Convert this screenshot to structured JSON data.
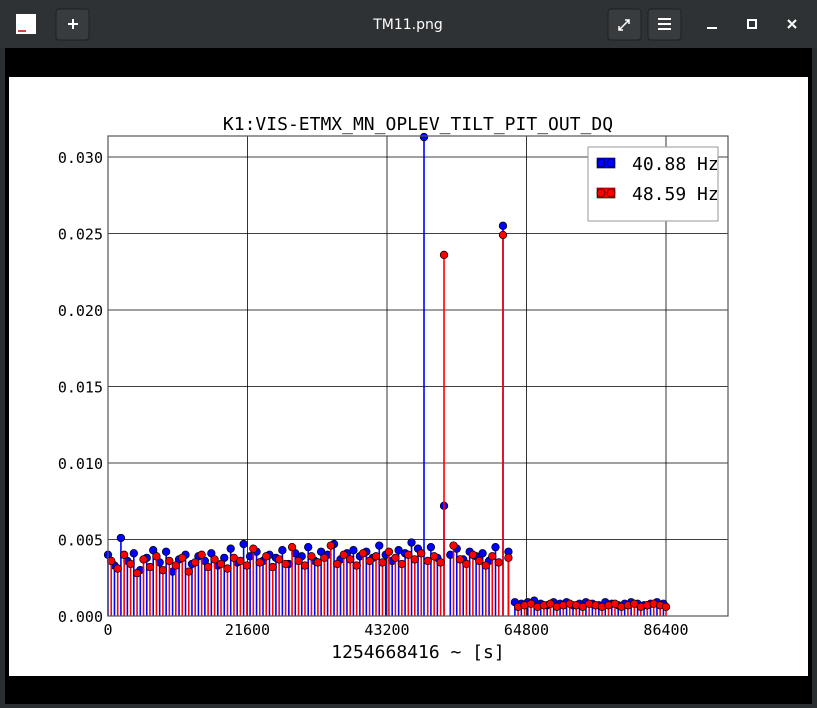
{
  "window": {
    "title": "TM11.png"
  },
  "chart_data": {
    "type": "stem",
    "title": "K1:VIS-ETMX_MN_OPLEV_TILT_PIT_OUT_DQ",
    "x_label": "1254668416 ~ [s]",
    "xlim": [
      0,
      96000
    ],
    "ylim": [
      0,
      0.03137
    ],
    "xticks": [
      0,
      21600,
      43200,
      64800,
      86400
    ],
    "yticks": [
      {
        "value": 0,
        "label": "0.000"
      },
      {
        "value": 0.005,
        "label": "0.005"
      },
      {
        "value": 0.01,
        "label": "0.010"
      },
      {
        "value": 0.015,
        "label": "0.015"
      },
      {
        "value": 0.02,
        "label": "0.020"
      },
      {
        "value": 0.025,
        "label": "0.025"
      },
      {
        "value": 0.03,
        "label": "0.030"
      }
    ],
    "grid": true,
    "legend": "upper right",
    "series": [
      {
        "name": "40.88 Hz",
        "color": "#0000ff",
        "x": [
          0,
          1000,
          2000,
          3000,
          4000,
          5000,
          6000,
          7000,
          8000,
          9000,
          10000,
          11000,
          12000,
          13000,
          14000,
          15000,
          16000,
          17000,
          18000,
          19000,
          20000,
          21000,
          22000,
          23000,
          24000,
          25000,
          26000,
          27000,
          28000,
          29000,
          30000,
          31000,
          32000,
          33000,
          34000,
          35000,
          36000,
          37000,
          38000,
          39000,
          40000,
          41000,
          42000,
          43000,
          44000,
          45000,
          46000,
          47000,
          48000,
          48930,
          50000,
          51000,
          52030,
          53000,
          54000,
          55000,
          56000,
          57000,
          58000,
          59000,
          60000,
          61160,
          62000,
          63000,
          64000,
          65000,
          66000,
          67000,
          68000,
          69000,
          70000,
          71000,
          72000,
          73000,
          74000,
          75000,
          76000,
          77000,
          78000,
          79000,
          80000,
          81000,
          82000,
          83000,
          84000,
          85000,
          86000
        ],
        "values": [
          0.004,
          0.0033,
          0.0051,
          0.0036,
          0.0041,
          0.003,
          0.0038,
          0.0043,
          0.0035,
          0.0042,
          0.0029,
          0.0037,
          0.004,
          0.0034,
          0.0039,
          0.0036,
          0.0041,
          0.0033,
          0.0038,
          0.0044,
          0.0035,
          0.0047,
          0.0039,
          0.0042,
          0.0036,
          0.004,
          0.0038,
          0.0043,
          0.0034,
          0.0041,
          0.0039,
          0.0045,
          0.0036,
          0.0042,
          0.004,
          0.0047,
          0.0037,
          0.0041,
          0.0043,
          0.0039,
          0.0042,
          0.0038,
          0.0046,
          0.004,
          0.0036,
          0.0043,
          0.0041,
          0.0048,
          0.0044,
          0.0313,
          0.0045,
          0.0038,
          0.0072,
          0.004,
          0.0044,
          0.0037,
          0.0042,
          0.0039,
          0.0041,
          0.0036,
          0.0045,
          0.0255,
          0.0042,
          0.0009,
          0.0008,
          0.0009,
          0.001,
          0.0008,
          0.0007,
          0.0009,
          0.0008,
          0.0009,
          0.0007,
          0.0008,
          0.0009,
          0.0008,
          0.0007,
          0.0009,
          0.0008,
          0.0007,
          0.0008,
          0.0009,
          0.0008,
          0.0007,
          0.0008,
          0.0009,
          0.0008
        ]
      },
      {
        "name": "48.59 Hz",
        "color": "#ff0000",
        "x": [
          500,
          1500,
          2500,
          3500,
          4500,
          5500,
          6500,
          7500,
          8500,
          9500,
          10500,
          11500,
          12500,
          13500,
          14500,
          15500,
          16500,
          17500,
          18500,
          19500,
          20500,
          21500,
          22500,
          23500,
          24500,
          25500,
          26500,
          27500,
          28500,
          29500,
          30500,
          31500,
          32500,
          33500,
          34500,
          35500,
          36500,
          37500,
          38500,
          39500,
          40500,
          41500,
          42500,
          43500,
          44500,
          45500,
          46500,
          47500,
          48500,
          49500,
          50500,
          51500,
          52030,
          53500,
          54500,
          55500,
          56500,
          57500,
          58500,
          59500,
          60500,
          61160,
          62000,
          63500,
          64500,
          65500,
          66500,
          67500,
          68500,
          69500,
          70500,
          71500,
          72500,
          73500,
          74500,
          75500,
          76500,
          77500,
          78500,
          79500,
          80500,
          81500,
          82500,
          83500,
          84500,
          85500,
          86400
        ],
        "values": [
          0.0036,
          0.0031,
          0.004,
          0.0034,
          0.0028,
          0.0037,
          0.0032,
          0.0039,
          0.003,
          0.0036,
          0.0033,
          0.0038,
          0.0029,
          0.0035,
          0.004,
          0.0032,
          0.0037,
          0.0034,
          0.0031,
          0.0038,
          0.0036,
          0.0033,
          0.0044,
          0.0035,
          0.0039,
          0.0032,
          0.0037,
          0.0034,
          0.0045,
          0.0036,
          0.0033,
          0.0039,
          0.0035,
          0.0038,
          0.0046,
          0.0034,
          0.004,
          0.0037,
          0.0033,
          0.0041,
          0.0036,
          0.0039,
          0.0035,
          0.0042,
          0.0038,
          0.0034,
          0.004,
          0.0037,
          0.0041,
          0.0036,
          0.0039,
          0.0035,
          0.0236,
          0.0046,
          0.0037,
          0.0034,
          0.004,
          0.0036,
          0.0033,
          0.0039,
          0.0035,
          0.0249,
          0.0038,
          0.0006,
          0.0007,
          0.0008,
          0.0006,
          0.0007,
          0.0008,
          0.0006,
          0.0007,
          0.0008,
          0.0007,
          0.0006,
          0.0008,
          0.0007,
          0.0006,
          0.0007,
          0.0008,
          0.0006,
          0.0007,
          0.0008,
          0.0006,
          0.0007,
          0.0008,
          0.0007,
          0.0006
        ]
      }
    ]
  }
}
